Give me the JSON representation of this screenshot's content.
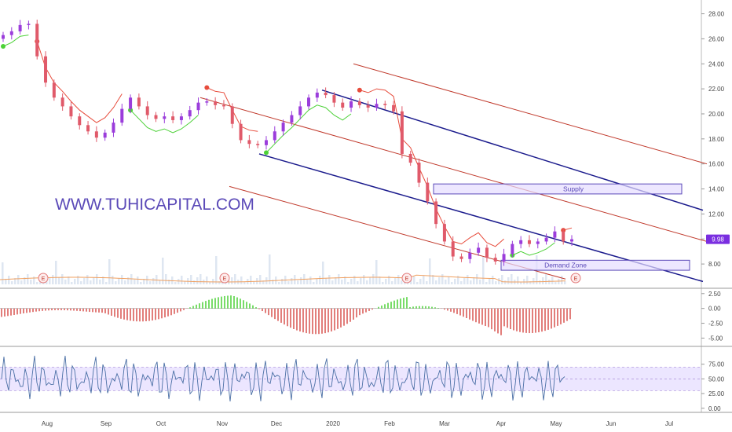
{
  "watermark": "WWW.TUHICAPITAL.COM",
  "chart_data": [
    {
      "type": "candlestick",
      "panel": "price",
      "title": "",
      "last_price_label": "9.98",
      "y_ticks": [
        8.0,
        10.0,
        12.0,
        14.0,
        16.0,
        18.0,
        20.0,
        22.0,
        24.0,
        26.0,
        28.0
      ],
      "ylim": [
        6.5,
        28.6
      ],
      "x_months": [
        "Aug",
        "Sep",
        "Oct",
        "Nov",
        "Dec",
        "2020",
        "Feb",
        "Mar",
        "Apr",
        "May",
        "Jun",
        "Jul"
      ],
      "approx_closes": [
        26.3,
        26.6,
        27.1,
        27.2,
        24.6,
        22.5,
        21.3,
        20.6,
        19.8,
        19.1,
        18.6,
        18.1,
        18.5,
        19.3,
        20.4,
        21.3,
        20.6,
        19.9,
        19.6,
        19.8,
        19.5,
        19.8,
        20.3,
        20.9,
        21.0,
        20.7,
        20.6,
        19.2,
        17.9,
        17.6,
        17.5,
        17.9,
        18.6,
        19.3,
        19.9,
        20.6,
        21.3,
        21.7,
        21.5,
        20.9,
        20.5,
        21.0,
        20.7,
        20.5,
        20.8,
        20.7,
        20.2,
        16.8,
        16.1,
        14.5,
        13.0,
        11.2,
        9.8,
        8.6,
        8.4,
        8.9,
        9.3,
        8.5,
        8.2,
        8.8,
        9.6,
        9.9,
        9.6,
        9.8,
        10.1,
        10.6,
        9.8,
        9.98
      ],
      "supply_zone": {
        "label": "Supply",
        "low": 13.6,
        "high": 14.4
      },
      "demand_zone": {
        "label": "Demand Zone",
        "low": 7.5,
        "high": 8.3
      },
      "earnings_markers": [
        "E",
        "E",
        "E",
        "E"
      ],
      "colors": {
        "up": "#9b3ddb",
        "down": "#e05a6a",
        "trail_up": "#4cd137",
        "trail_down": "#e74c3c",
        "channel": "#c0392b",
        "trend": "#1a1a8c"
      }
    },
    {
      "type": "histogram",
      "panel": "oscillator",
      "y_ticks": [
        2.5,
        0.0,
        -2.5,
        -5.0
      ],
      "ylim": [
        -6.0,
        3.0
      ],
      "colors": {
        "positive": "#4cd137",
        "negative": "#d9534f"
      }
    },
    {
      "type": "line",
      "panel": "rsi",
      "y_ticks": [
        75.0,
        50.0,
        25.0,
        0.0
      ],
      "ylim": [
        -3,
        100
      ],
      "band": [
        30,
        70
      ],
      "colors": {
        "line": "#4a6fa5",
        "band": "#e6ddff"
      }
    }
  ]
}
